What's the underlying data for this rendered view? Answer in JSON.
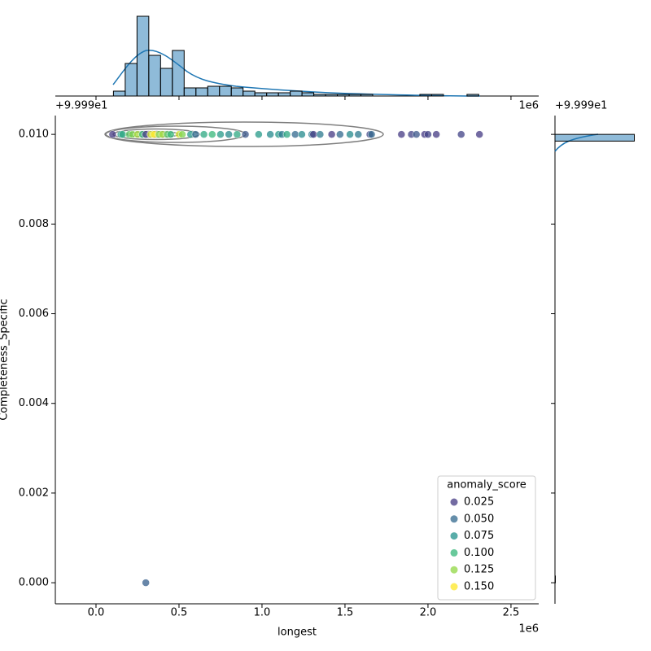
{
  "chart_data": [
    {
      "type": "scatter",
      "x_label": "longest",
      "y_label": "Completeness_Specific",
      "x_offset": "1e6",
      "y_offset": "+9.999e1",
      "x": [
        0.1,
        0.15,
        0.16,
        0.2,
        0.22,
        0.25,
        0.28,
        0.3,
        0.33,
        0.35,
        0.38,
        0.4,
        0.43,
        0.45,
        0.5,
        0.52,
        0.57,
        0.6,
        0.65,
        0.7,
        0.75,
        0.8,
        0.85,
        0.9,
        0.98,
        1.05,
        1.1,
        1.12,
        1.15,
        1.2,
        1.24,
        1.3,
        1.31,
        1.35,
        1.42,
        1.47,
        1.53,
        1.58,
        1.65,
        1.66,
        1.84,
        1.9,
        1.93,
        1.98,
        2.0,
        2.05,
        2.2,
        2.31,
        0.3
      ],
      "y": [
        0.01,
        0.01,
        0.01,
        0.01,
        0.01,
        0.01,
        0.01,
        0.01,
        0.01,
        0.01,
        0.01,
        0.01,
        0.01,
        0.01,
        0.01,
        0.01,
        0.01,
        0.01,
        0.01,
        0.01,
        0.01,
        0.01,
        0.01,
        0.01,
        0.01,
        0.01,
        0.01,
        0.01,
        0.01,
        0.01,
        0.01,
        0.01,
        0.01,
        0.01,
        0.01,
        0.01,
        0.01,
        0.01,
        0.01,
        0.01,
        0.01,
        0.01,
        0.01,
        0.01,
        0.01,
        0.01,
        0.01,
        0.01,
        0
      ],
      "hue": [
        0.02,
        0.08,
        0.09,
        0.11,
        0.12,
        0.13,
        0.1,
        0.01,
        0.14,
        0.15,
        0.12,
        0.13,
        0.11,
        0.1,
        0.14,
        0.12,
        0.08,
        0.05,
        0.09,
        0.1,
        0.08,
        0.07,
        0.09,
        0.04,
        0.08,
        0.07,
        0.08,
        0.06,
        0.09,
        0.05,
        0.07,
        0.06,
        0.02,
        0.06,
        0.02,
        0.05,
        0.07,
        0.06,
        0.03,
        0.05,
        0.02,
        0.03,
        0.04,
        0.02,
        0.03,
        0.02,
        0.03,
        0.02,
        0.045
      ],
      "legend_title": "anomaly_score",
      "legend_position": "lower right",
      "hue_levels": [
        0.025,
        {
          "value": 0.05,
          "label": "0.050"
        },
        0.075,
        {
          "value": 0.1,
          "label": "0.100"
        },
        0.125,
        {
          "value": 0.15,
          "label": "0.150"
        }
      ],
      "hue_colors": [
        "#443983",
        "#31688e",
        "#21918c",
        "#35b779",
        "#90d743",
        "#fde725"
      ],
      "xlim": [
        -0.245,
        2.667
      ],
      "ylim": [
        -0.00047,
        0.01042
      ],
      "xticks": [
        {
          "value": 0,
          "label": "0.0"
        },
        0.5,
        {
          "value": 1,
          "label": "1.0"
        },
        1.5,
        {
          "value": 2,
          "label": "2.0"
        },
        2.5
      ],
      "yticks": [
        {
          "value": 0,
          "label": "0.000"
        },
        0.002,
        0.004,
        0.006,
        0.008,
        {
          "value": 0.01,
          "label": "0.010"
        }
      ]
    },
    {
      "type": "histogram",
      "orientation": "vertical",
      "color": "#1f77b4",
      "bins": [
        0.105,
        0.176,
        0.247,
        0.318,
        0.389,
        0.46,
        0.531,
        0.602,
        0.673,
        0.744,
        0.815,
        0.886,
        0.957,
        1.028,
        1.099,
        1.17,
        1.241,
        1.312,
        1.383,
        1.454,
        1.525,
        1.596,
        1.667,
        1.738,
        1.809,
        1.88,
        1.951,
        2.022,
        2.093,
        2.164,
        2.235,
        2.306
      ],
      "counts": [
        3,
        20,
        49,
        25,
        17,
        28,
        5,
        5,
        6,
        6,
        5,
        3,
        2,
        2,
        2,
        3,
        2,
        1,
        1,
        1,
        1,
        1,
        0,
        0,
        0,
        0,
        1,
        1,
        0,
        0,
        1
      ],
      "ylim": [
        0,
        50
      ]
    },
    {
      "type": "histogram",
      "orientation": "horizontal",
      "color": "#1f77b4",
      "bins": [
        0,
        0.00015,
        0.00985,
        0.01
      ],
      "counts": [
        1,
        0,
        199
      ],
      "xlim": [
        0,
        200
      ]
    }
  ]
}
